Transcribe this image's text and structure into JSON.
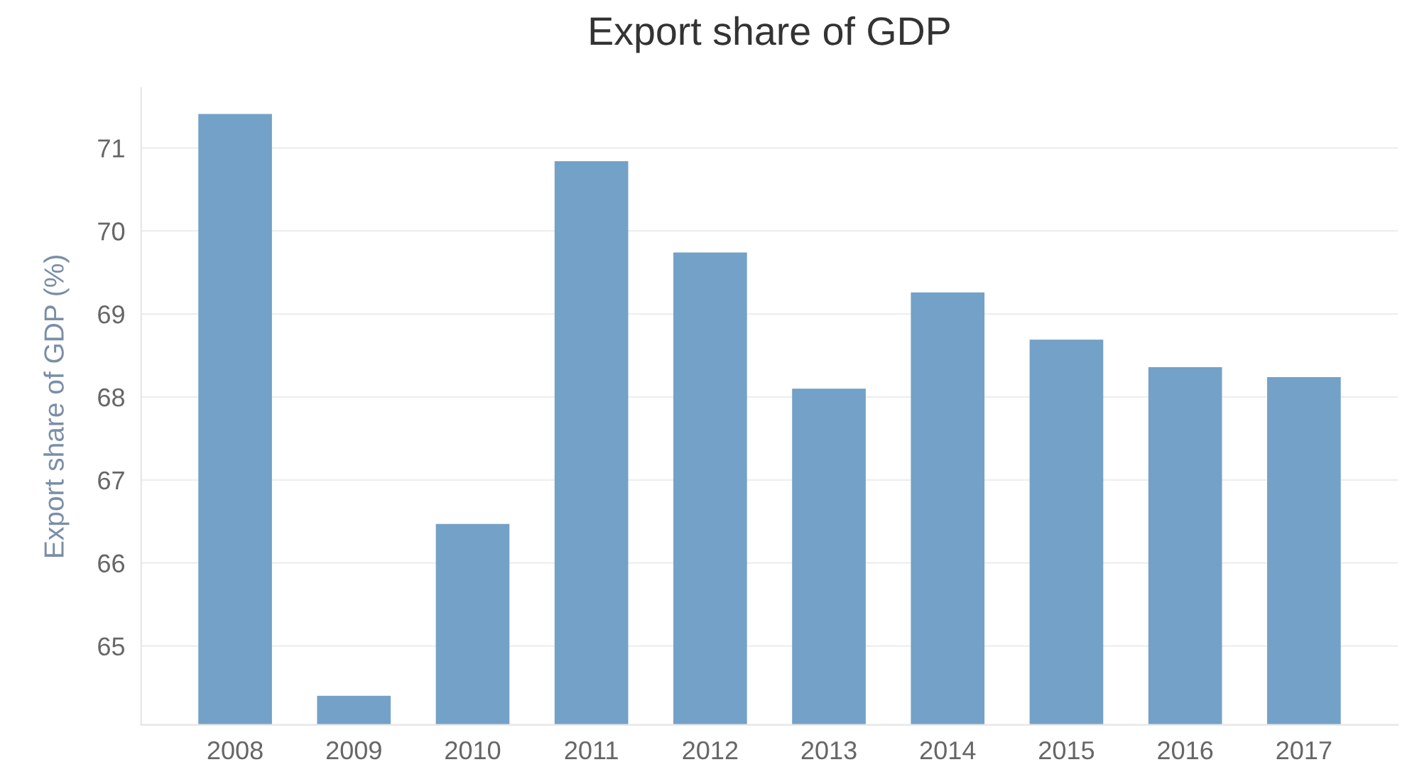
{
  "chart_data": {
    "type": "bar",
    "title": "Export share of GDP",
    "ylabel": "Export share of GDP (%)",
    "categories": [
      "2008",
      "2009",
      "2010",
      "2011",
      "2012",
      "2013",
      "2014",
      "2015",
      "2016",
      "2017"
    ],
    "values": [
      71.41,
      64.4,
      66.47,
      70.84,
      69.74,
      68.1,
      69.26,
      68.69,
      68.36,
      68.24
    ],
    "color": "#74a1c7",
    "ylim": [
      64.05,
      71.72
    ],
    "yticks": [
      65,
      66,
      67,
      68,
      69,
      70,
      71
    ],
    "grid": "y"
  }
}
